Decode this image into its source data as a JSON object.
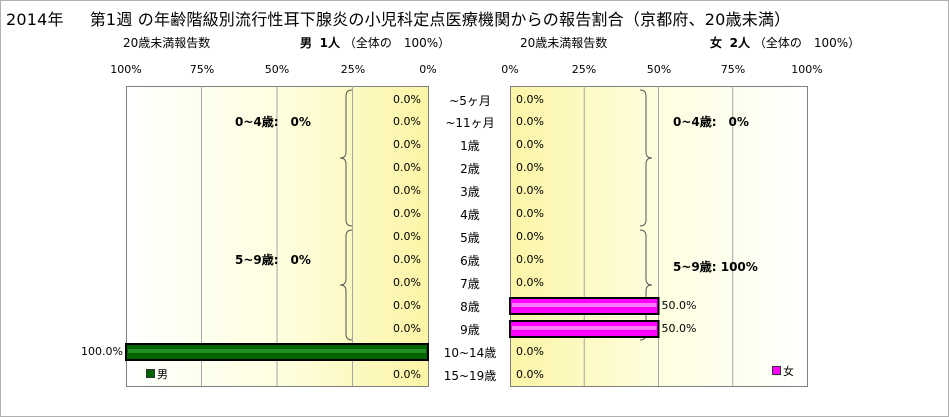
{
  "title": {
    "year": "2014年",
    "text": "第1週 の年齢階級別流行性耳下腺炎の小児科定点医療機関からの報告割合（京都府、20歳未満）"
  },
  "male_header": {
    "report_label": "20歳未満報告数",
    "sex": "男",
    "count": "1人",
    "share": "（全体の　100%）"
  },
  "female_header": {
    "report_label": "20歳未満報告数",
    "sex": "女",
    "count": "2人",
    "share": "（全体の　100%）"
  },
  "male_axis_ticks": [
    "100%",
    "75%",
    "50%",
    "25%",
    "0%"
  ],
  "female_axis_ticks": [
    "0%",
    "25%",
    "50%",
    "75%",
    "100%"
  ],
  "groups": {
    "male_0_4": "0~4歳:　0%",
    "male_5_9": "5~9歳:　0%",
    "female_0_4": "0~4歳:　0%",
    "female_5_9": "5~9歳: 100%"
  },
  "legend": {
    "male": "男",
    "female": "女"
  },
  "colors": {
    "male": "#006400",
    "female": "#ff00ff"
  },
  "chart_data": {
    "type": "bar",
    "orientation": "horizontal",
    "categories": [
      "~5ヶ月",
      "~11ヶ月",
      "1歳",
      "2歳",
      "3歳",
      "4歳",
      "5歳",
      "6歳",
      "7歳",
      "8歳",
      "9歳",
      "10~14歳",
      "15~19歳"
    ],
    "xlim": [
      0,
      100
    ],
    "grid": true,
    "series": [
      {
        "name": "男",
        "values": [
          0,
          0,
          0,
          0,
          0,
          0,
          0,
          0,
          0,
          0,
          0,
          100,
          0
        ],
        "labels": [
          "0.0%",
          "0.0%",
          "0.0%",
          "0.0%",
          "0.0%",
          "0.0%",
          "0.0%",
          "0.0%",
          "0.0%",
          "0.0%",
          "0.0%",
          "100.0%",
          "0.0%"
        ]
      },
      {
        "name": "女",
        "values": [
          0,
          0,
          0,
          0,
          0,
          0,
          0,
          0,
          0,
          50,
          50,
          0,
          0
        ],
        "labels": [
          "0.0%",
          "0.0%",
          "0.0%",
          "0.0%",
          "0.0%",
          "0.0%",
          "0.0%",
          "0.0%",
          "0.0%",
          "50.0%",
          "50.0%",
          "0.0%",
          "0.0%"
        ]
      }
    ]
  }
}
